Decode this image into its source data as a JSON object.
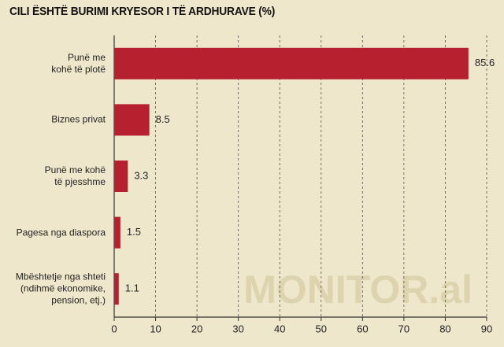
{
  "chart_data": {
    "type": "barh",
    "title": "CILI ËSHTË BURIMI KRYESOR I TË ARDHURAVE (%)",
    "watermark": "MONITOR.al",
    "categories": [
      "Punë me\nkohë të plotë",
      "Biznes privat",
      "Punë me kohë\ntë pjesshme",
      "Pagesa nga diaspora",
      "Mbështetje nga shteti\n(ndihmë ekonomike,\npension, etj.)"
    ],
    "values": [
      85.6,
      8.5,
      3.3,
      1.5,
      1.1
    ],
    "color": "#b7202e",
    "xlim": [
      0,
      90
    ],
    "xticks": [
      0,
      10,
      20,
      30,
      40,
      50,
      60,
      70,
      80,
      90
    ],
    "grid": true
  }
}
